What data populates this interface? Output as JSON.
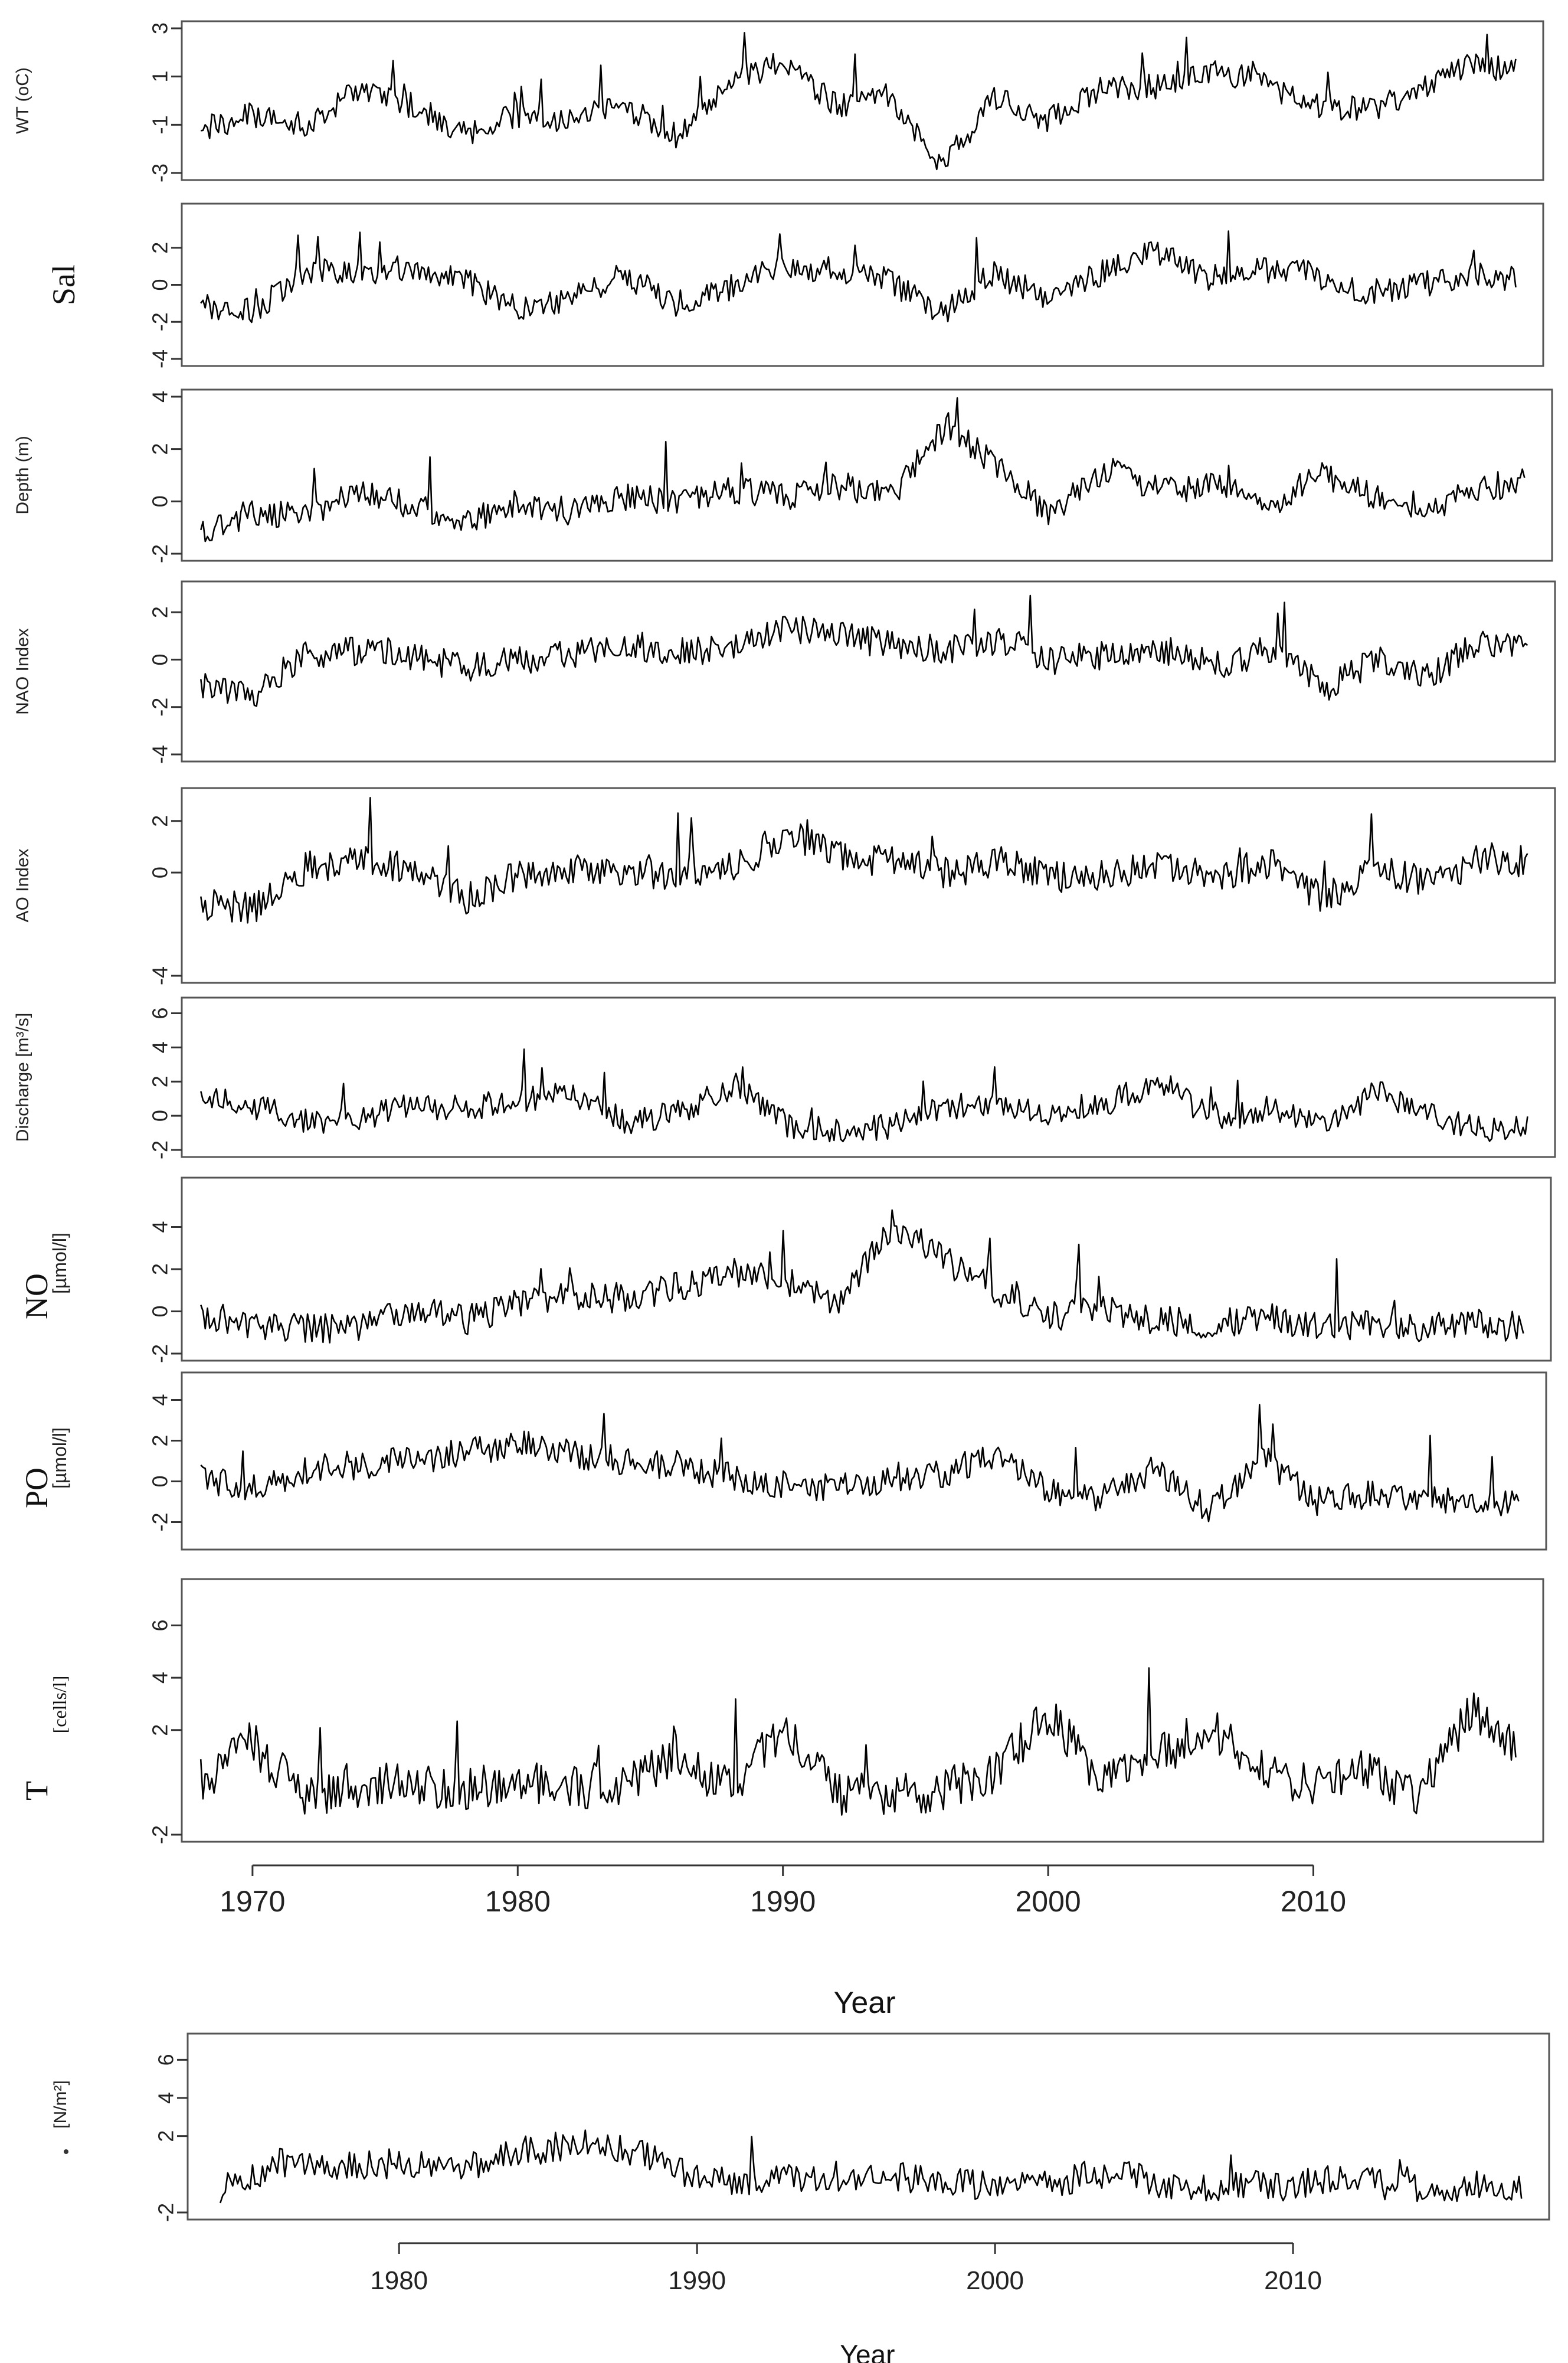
{
  "chart_data": [
    {
      "type": "line",
      "ylabel": "WT (oC)",
      "xlim": [
        1968,
        2018
      ],
      "ylim": [
        -3,
        3
      ],
      "yticks": [
        "-3",
        "-1",
        "1",
        "3"
      ],
      "series": [
        {
          "x": [
            1968,
            1970,
            1972,
            1974,
            1976,
            1978,
            1980,
            1982,
            1984,
            1986,
            1988,
            1990,
            1992,
            1994,
            1996,
            1998,
            2000,
            2002,
            2004,
            2006,
            2008,
            2010,
            2012,
            2014,
            2016,
            2018
          ],
          "values": [
            -1.2,
            -0.6,
            -1.0,
            0.4,
            -0.2,
            -1.4,
            -0.6,
            -0.8,
            -0.2,
            -1.5,
            0.8,
            1.6,
            -0.2,
            0.2,
            -2.8,
            0.2,
            -0.8,
            0.5,
            0.6,
            1.2,
            0.8,
            -0.2,
            -0.4,
            0.4,
            1.5,
            1.2
          ]
        }
      ]
    },
    {
      "type": "line",
      "ylabel": "Sal",
      "xlim": [
        1968,
        2018
      ],
      "ylim": [
        -4,
        4
      ],
      "yticks": [
        "-4",
        "-2",
        "0",
        "2"
      ],
      "series": [
        {
          "x": [
            1968,
            1970,
            1972,
            1974,
            1976,
            1978,
            1980,
            1982,
            1984,
            1986,
            1988,
            1990,
            1992,
            1994,
            1996,
            1998,
            2000,
            2002,
            2004,
            2006,
            2008,
            2010,
            2012,
            2014,
            2016,
            2018
          ],
          "values": [
            -1.0,
            -1.5,
            0.8,
            0.6,
            1.0,
            0.2,
            -1.2,
            -0.8,
            0.5,
            -1.0,
            -0.2,
            1.0,
            0.8,
            0.2,
            -1.5,
            0.6,
            -0.8,
            0.6,
            1.8,
            0.4,
            0.8,
            0.6,
            -0.4,
            0.0,
            0.6,
            0.2
          ]
        }
      ]
    },
    {
      "type": "line",
      "ylabel": "Depth (m)",
      "xlim": [
        1968,
        2018
      ],
      "ylim": [
        -2,
        4
      ],
      "yticks": [
        "-2",
        "0",
        "2",
        "4"
      ],
      "series": [
        {
          "x": [
            1968,
            1970,
            1972,
            1974,
            1976,
            1978,
            1980,
            1982,
            1984,
            1986,
            1988,
            1990,
            1992,
            1994,
            1996,
            1998,
            2000,
            2002,
            2004,
            2006,
            2008,
            2010,
            2012,
            2014,
            2016,
            2018
          ],
          "values": [
            -1.2,
            -0.4,
            -0.6,
            0.4,
            -0.2,
            -0.8,
            0.0,
            -0.4,
            0.2,
            0.0,
            0.4,
            0.2,
            0.6,
            0.2,
            3.0,
            1.2,
            -0.6,
            1.2,
            0.4,
            0.6,
            -0.2,
            1.0,
            0.2,
            -0.2,
            0.4,
            1.0
          ]
        }
      ]
    },
    {
      "type": "line",
      "ylabel": "NAO Index",
      "xlim": [
        1968,
        2018
      ],
      "ylim": [
        -4,
        3
      ],
      "yticks": [
        "-4",
        "-2",
        "0",
        "2"
      ],
      "series": [
        {
          "x": [
            1968,
            1970,
            1972,
            1974,
            1976,
            1978,
            1980,
            1982,
            1984,
            1986,
            1988,
            1990,
            1992,
            1994,
            1996,
            1998,
            2000,
            2002,
            2004,
            2006,
            2008,
            2010,
            2012,
            2014,
            2016,
            2018
          ],
          "values": [
            -1.0,
            -1.5,
            0.2,
            0.4,
            0.2,
            -0.4,
            0.0,
            0.2,
            0.6,
            0.4,
            0.4,
            1.4,
            1.0,
            0.6,
            0.4,
            0.8,
            0.0,
            0.2,
            0.4,
            -0.2,
            0.4,
            -1.2,
            0.0,
            -0.6,
            0.8,
            0.4
          ]
        }
      ]
    },
    {
      "type": "line",
      "ylabel": "AO Index",
      "xlim": [
        1968,
        2018
      ],
      "ylim": [
        -4,
        3
      ],
      "yticks": [
        "-4",
        "0",
        "2"
      ],
      "series": [
        {
          "x": [
            1968,
            1970,
            1972,
            1974,
            1976,
            1978,
            1980,
            1982,
            1984,
            1986,
            1988,
            1990,
            1992,
            1994,
            1996,
            1998,
            2000,
            2002,
            2004,
            2006,
            2008,
            2010,
            2012,
            2014,
            2016,
            2018
          ],
          "values": [
            -1.2,
            -1.4,
            0.2,
            0.4,
            0.2,
            -1.0,
            0.0,
            0.2,
            -0.2,
            0.0,
            0.2,
            1.6,
            0.6,
            0.4,
            0.0,
            0.4,
            -0.2,
            0.0,
            0.2,
            -0.2,
            0.4,
            -1.0,
            0.2,
            -0.4,
            0.6,
            0.4
          ]
        }
      ]
    },
    {
      "type": "line",
      "ylabel": "Discharge [m³/s]",
      "xlim": [
        1968,
        2018
      ],
      "ylim": [
        -2,
        6.5
      ],
      "yticks": [
        "-2",
        "0",
        "2",
        "4",
        "6"
      ],
      "series": [
        {
          "x": [
            1968,
            1970,
            1972,
            1974,
            1976,
            1978,
            1980,
            1982,
            1984,
            1986,
            1988,
            1990,
            1992,
            1994,
            1996,
            1998,
            2000,
            2002,
            2004,
            2006,
            2008,
            2010,
            2012,
            2014,
            2016,
            2018
          ],
          "values": [
            1.0,
            0.6,
            -0.4,
            -0.2,
            0.6,
            0.4,
            1.0,
            1.2,
            -0.4,
            0.2,
            1.8,
            -0.6,
            -0.8,
            -0.6,
            0.6,
            0.4,
            0.2,
            0.8,
            2.0,
            -0.4,
            0.6,
            -0.8,
            1.4,
            0.0,
            -0.8,
            -0.8
          ]
        }
      ]
    },
    {
      "type": "line",
      "ylabel": "NO",
      "ylabel_small": "[µmol/l]",
      "xlim": [
        1968,
        2018
      ],
      "ylim": [
        -2,
        6
      ],
      "yticks": [
        "-2",
        "0",
        "2",
        "4"
      ],
      "series": [
        {
          "x": [
            1968,
            1970,
            1972,
            1974,
            1976,
            1978,
            1980,
            1982,
            1984,
            1986,
            1988,
            1990,
            1992,
            1994,
            1996,
            1998,
            2000,
            2002,
            2004,
            2006,
            2008,
            2010,
            2012,
            2014,
            2016,
            2018
          ],
          "values": [
            -0.2,
            -0.6,
            -0.8,
            -0.8,
            0.2,
            -0.4,
            0.4,
            0.8,
            0.6,
            1.2,
            1.8,
            1.4,
            0.2,
            4.2,
            2.4,
            0.8,
            -0.2,
            0.0,
            -0.4,
            -0.6,
            -0.2,
            -0.8,
            -0.6,
            -0.8,
            -0.6,
            -0.8
          ]
        }
      ]
    },
    {
      "type": "line",
      "ylabel": "PO",
      "ylabel_small": "[µmol/l]",
      "xlim": [
        1968,
        2018
      ],
      "ylim": [
        -3,
        5
      ],
      "yticks": [
        "-2",
        "0",
        "2",
        "4"
      ],
      "series": [
        {
          "x": [
            1968,
            1970,
            1972,
            1974,
            1976,
            1978,
            1980,
            1982,
            1984,
            1986,
            1988,
            1990,
            1992,
            1994,
            1996,
            1998,
            2000,
            2002,
            2004,
            2006,
            2008,
            2010,
            2012,
            2014,
            2016,
            2018
          ],
          "values": [
            0.2,
            -0.4,
            0.6,
            0.8,
            1.0,
            1.4,
            1.8,
            1.4,
            1.0,
            0.8,
            0.2,
            -0.2,
            -0.4,
            0.2,
            0.4,
            1.4,
            -0.6,
            -0.8,
            0.6,
            -1.4,
            1.2,
            -1.0,
            -0.6,
            -0.8,
            -1.0,
            -1.0
          ]
        }
      ]
    },
    {
      "type": "line",
      "ylabel": "T",
      "ylabel_small": "[cells/l]",
      "xlim": [
        1968,
        2018
      ],
      "ylim": [
        -2,
        7.5
      ],
      "yticks": [
        "-2",
        "2",
        "4",
        "6"
      ],
      "xticks": [
        "1970",
        "1980",
        "1990",
        "2000",
        "2010"
      ],
      "xlabel": "Year",
      "series": [
        {
          "x": [
            1968,
            1970,
            1972,
            1974,
            1976,
            1978,
            1980,
            1982,
            1984,
            1986,
            1988,
            1990,
            1992,
            1994,
            1996,
            1998,
            2000,
            2002,
            2004,
            2006,
            2008,
            2010,
            2012,
            2014,
            2016,
            2018
          ],
          "values": [
            0.0,
            1.5,
            -0.5,
            -0.2,
            0.0,
            -0.3,
            0.2,
            -0.2,
            0.0,
            1.0,
            -0.2,
            2.0,
            -0.4,
            -0.6,
            -0.2,
            0.4,
            2.5,
            0.2,
            0.8,
            2.2,
            0.6,
            -0.2,
            0.4,
            -0.4,
            2.8,
            0.8
          ]
        }
      ]
    },
    {
      "type": "line",
      "ylabel_small": "[N/m²]",
      "xlim": [
        1973.5,
        2018
      ],
      "ylim": [
        -2,
        7
      ],
      "yticks": [
        "-2",
        "2",
        "4",
        "6"
      ],
      "xticks": [
        "1980",
        "1990",
        "2000",
        "2010"
      ],
      "xlabel": "Year",
      "series": [
        {
          "x": [
            1974,
            1976,
            1978,
            1980,
            1982,
            1984,
            1986,
            1988,
            1990,
            1992,
            1994,
            1996,
            1998,
            2000,
            2002,
            2004,
            2006,
            2008,
            2010,
            2012,
            2014,
            2016,
            2018
          ],
          "values": [
            -0.8,
            0.6,
            0.4,
            0.6,
            0.2,
            1.2,
            1.6,
            1.2,
            -0.2,
            -0.4,
            -0.2,
            0.0,
            -0.4,
            -0.6,
            -0.4,
            0.2,
            -0.8,
            -0.6,
            -0.6,
            -0.2,
            -0.8,
            -0.6,
            -0.8
          ]
        }
      ]
    }
  ]
}
